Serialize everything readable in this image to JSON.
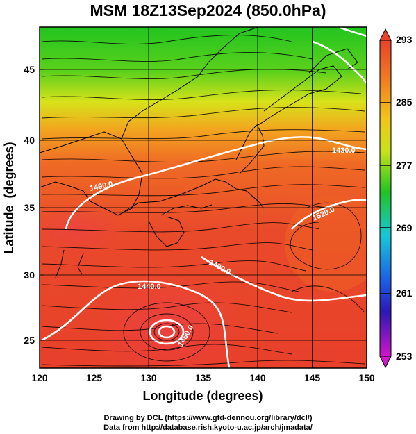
{
  "title": "MSM 18Z13Sep2024 (850.0hPa)",
  "map": {
    "x_axis": {
      "label": "Longitude (degrees)",
      "range": [
        120,
        150
      ],
      "ticks": [
        "120",
        "125",
        "130",
        "135",
        "140",
        "145",
        "150"
      ]
    },
    "y_axis": {
      "label": "Latitude  (degrees)",
      "range": [
        22.4,
        47.6
      ],
      "ticks": [
        "25",
        "30",
        "35",
        "40",
        "45"
      ]
    },
    "grid": true,
    "contour_labels": [
      "1490.0",
      "1440.0",
      "1490.0",
      "1520.0",
      "1460.0",
      "1430.0"
    ],
    "colors": {
      "warm": "#e8432a",
      "orange": "#ef7a22",
      "yellow": "#e7e51c",
      "green": "#1fbf24",
      "contour": "#ffffff"
    }
  },
  "colorbar": {
    "labels": [
      "293",
      "285",
      "277",
      "269",
      "261",
      "253"
    ],
    "range": [
      253,
      293
    ],
    "extend": "both"
  },
  "credits": {
    "line1": "Drawing by DCL (https://www.gfd-dennou.org/library/dcl/)",
    "line2": "Data from http://database.rish.kyoto-u.ac.jp/arch/jmadata/"
  }
}
